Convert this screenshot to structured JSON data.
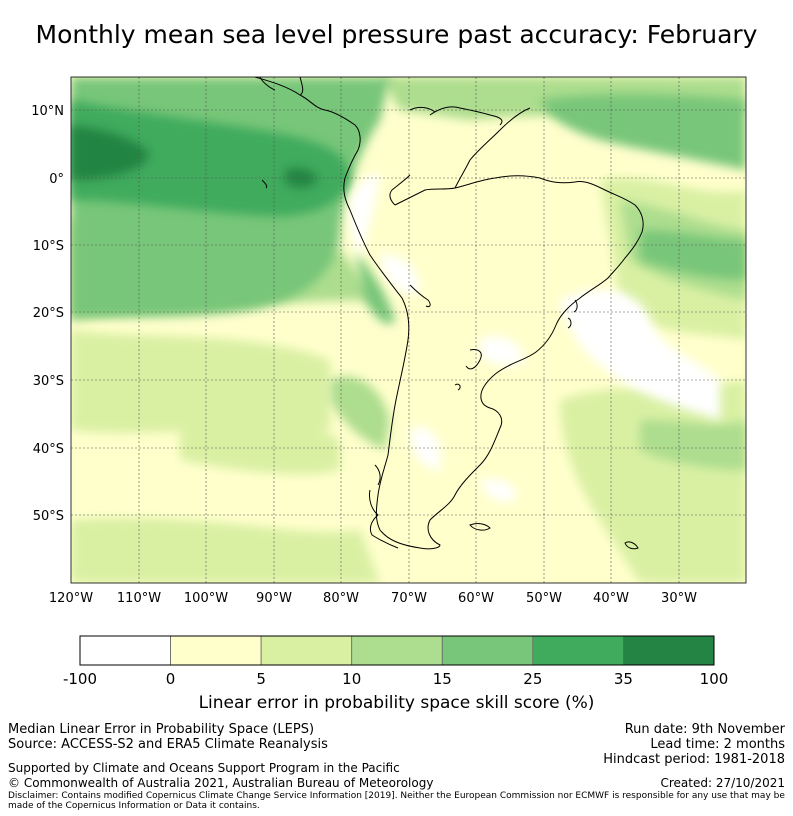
{
  "title": "Monthly mean sea level pressure past accuracy: February",
  "map": {
    "lat_labels": [
      "10°N",
      "0°",
      "10°S",
      "20°S",
      "30°S",
      "40°S",
      "50°S"
    ],
    "lon_labels": [
      "120°W",
      "110°W",
      "100°W",
      "90°W",
      "80°W",
      "70°W",
      "60°W",
      "50°W",
      "40°W",
      "30°W"
    ],
    "extent": {
      "lon_min": -120,
      "lon_max": -20,
      "lat_min": -60,
      "lat_max": 15
    }
  },
  "colorbar": {
    "boundaries": [
      "-100",
      "0",
      "5",
      "10",
      "15",
      "25",
      "35",
      "100"
    ],
    "colors": [
      "#ffffff",
      "#ffffcc",
      "#d9f0a3",
      "#addd8e",
      "#78c679",
      "#41ab5d",
      "#238443"
    ],
    "title": "Linear error in probability space skill score (%)"
  },
  "footer": {
    "left_line1": "Median Linear Error in Probability Space (LEPS)",
    "left_line2": "Source: ACCESS-S2 and ERA5 Climate Reanalysis",
    "supported": "Supported by Climate and Oceans Support Program in the Pacific",
    "copyright": "© Commonwealth of Australia 2021, Australian Bureau of Meteorology",
    "run_date": "Run date: 9th November",
    "lead_time": "Lead time: 2 months",
    "hindcast": "Hindcast period: 1981-2018",
    "created": "Created: 27/10/2021",
    "disclaimer": "Disclaimer: Contains modified Copernicus Climate Change Service Information [2019]. Neither the European Commission nor ECMWF is responsible for any use that may be made of the Copernicus Information or Data it contains."
  }
}
